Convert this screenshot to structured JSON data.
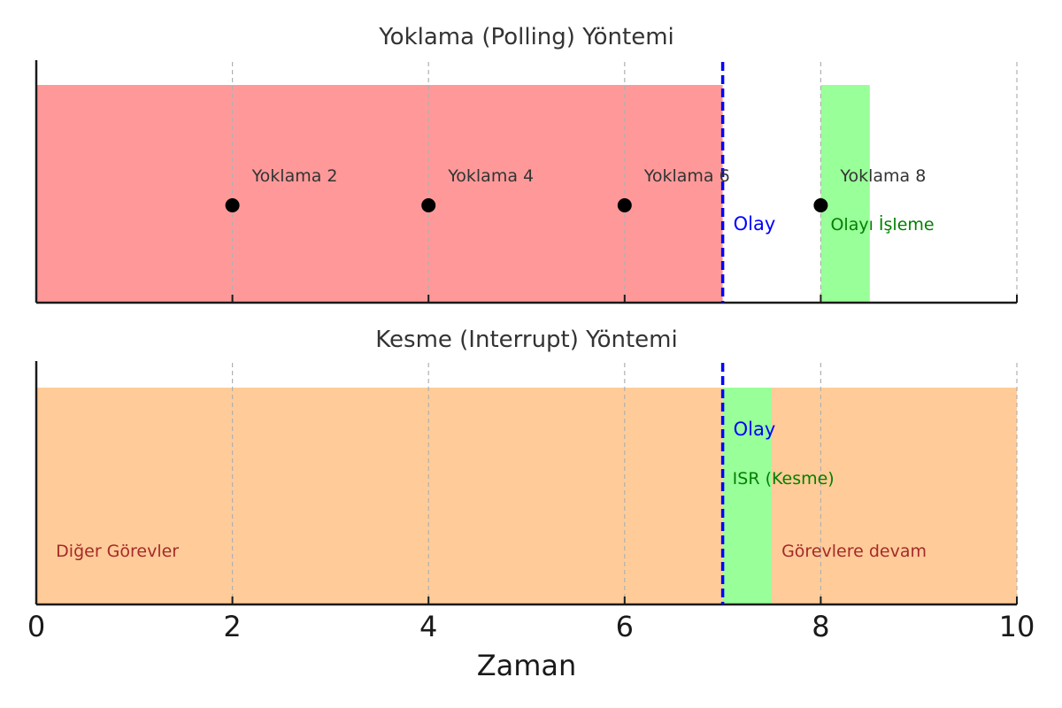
{
  "chart_data": [
    {
      "type": "timeline",
      "title": "Yoklama (Polling) Yöntemi",
      "xlim": [
        0,
        10
      ],
      "grid": "x-dashed",
      "spans": [
        {
          "start": 0,
          "end": 7,
          "color": "#ff9999"
        },
        {
          "start": 8,
          "end": 8.5,
          "color": "#99ff99"
        }
      ],
      "event": {
        "x": 7,
        "label": "Olay",
        "color": "#0000ff"
      },
      "points": [
        {
          "x": 2,
          "label": "Yoklama 2"
        },
        {
          "x": 4,
          "label": "Yoklama 4"
        },
        {
          "x": 6,
          "label": "Yoklama 6"
        },
        {
          "x": 8,
          "label": "Yoklama 8"
        }
      ],
      "annotations": [
        {
          "x": 8.1,
          "text": "Olayı İşleme",
          "color": "#008000"
        }
      ]
    },
    {
      "type": "timeline",
      "title": "Kesme (Interrupt) Yöntemi",
      "xlim": [
        0,
        10
      ],
      "grid": "x-dashed",
      "spans": [
        {
          "start": 0,
          "end": 10,
          "color": "#ffcc99"
        },
        {
          "start": 7,
          "end": 7.5,
          "color": "#99ff99"
        }
      ],
      "event": {
        "x": 7,
        "label": "Olay",
        "color": "#0000ff"
      },
      "annotations": [
        {
          "x": 7.1,
          "text": "ISR (Kesme)",
          "color": "#008000"
        },
        {
          "x": 0.2,
          "text": "Diğer Görevler",
          "color": "#a52a2a"
        },
        {
          "x": 7.6,
          "text": "Görevlere devam",
          "color": "#a52a2a"
        }
      ]
    }
  ],
  "shared_x_axis": {
    "label": "Zaman",
    "ticks": [
      "0",
      "2",
      "4",
      "6",
      "8",
      "10"
    ]
  }
}
